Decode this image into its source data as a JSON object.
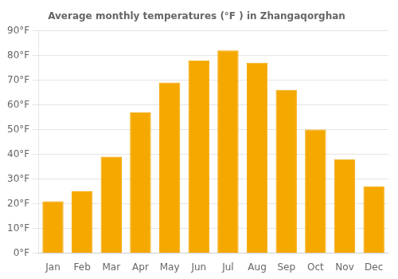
{
  "chart_data": {
    "type": "bar",
    "title": "Average monthly temperatures (°F ) in Zhangaqorghan",
    "categories": [
      "Jan",
      "Feb",
      "Mar",
      "Apr",
      "May",
      "Jun",
      "Jul",
      "Aug",
      "Sep",
      "Oct",
      "Nov",
      "Dec"
    ],
    "values": [
      21,
      25,
      39,
      57,
      69,
      78,
      82,
      77,
      66,
      50,
      38,
      27
    ],
    "color": "#F5A800",
    "ylim": [
      0,
      90
    ],
    "yticks": [
      {
        "value": 0,
        "label": "0°F"
      },
      {
        "value": 10,
        "label": "10°F"
      },
      {
        "value": 20,
        "label": "20°F"
      },
      {
        "value": 30,
        "label": "30°F"
      },
      {
        "value": 40,
        "label": "40°F"
      },
      {
        "value": 50,
        "label": "50°F"
      },
      {
        "value": 60,
        "label": "60°F"
      },
      {
        "value": 70,
        "label": "70°F"
      },
      {
        "value": 80,
        "label": "80°F"
      },
      {
        "value": 90,
        "label": "90°F"
      }
    ],
    "grid": true
  }
}
